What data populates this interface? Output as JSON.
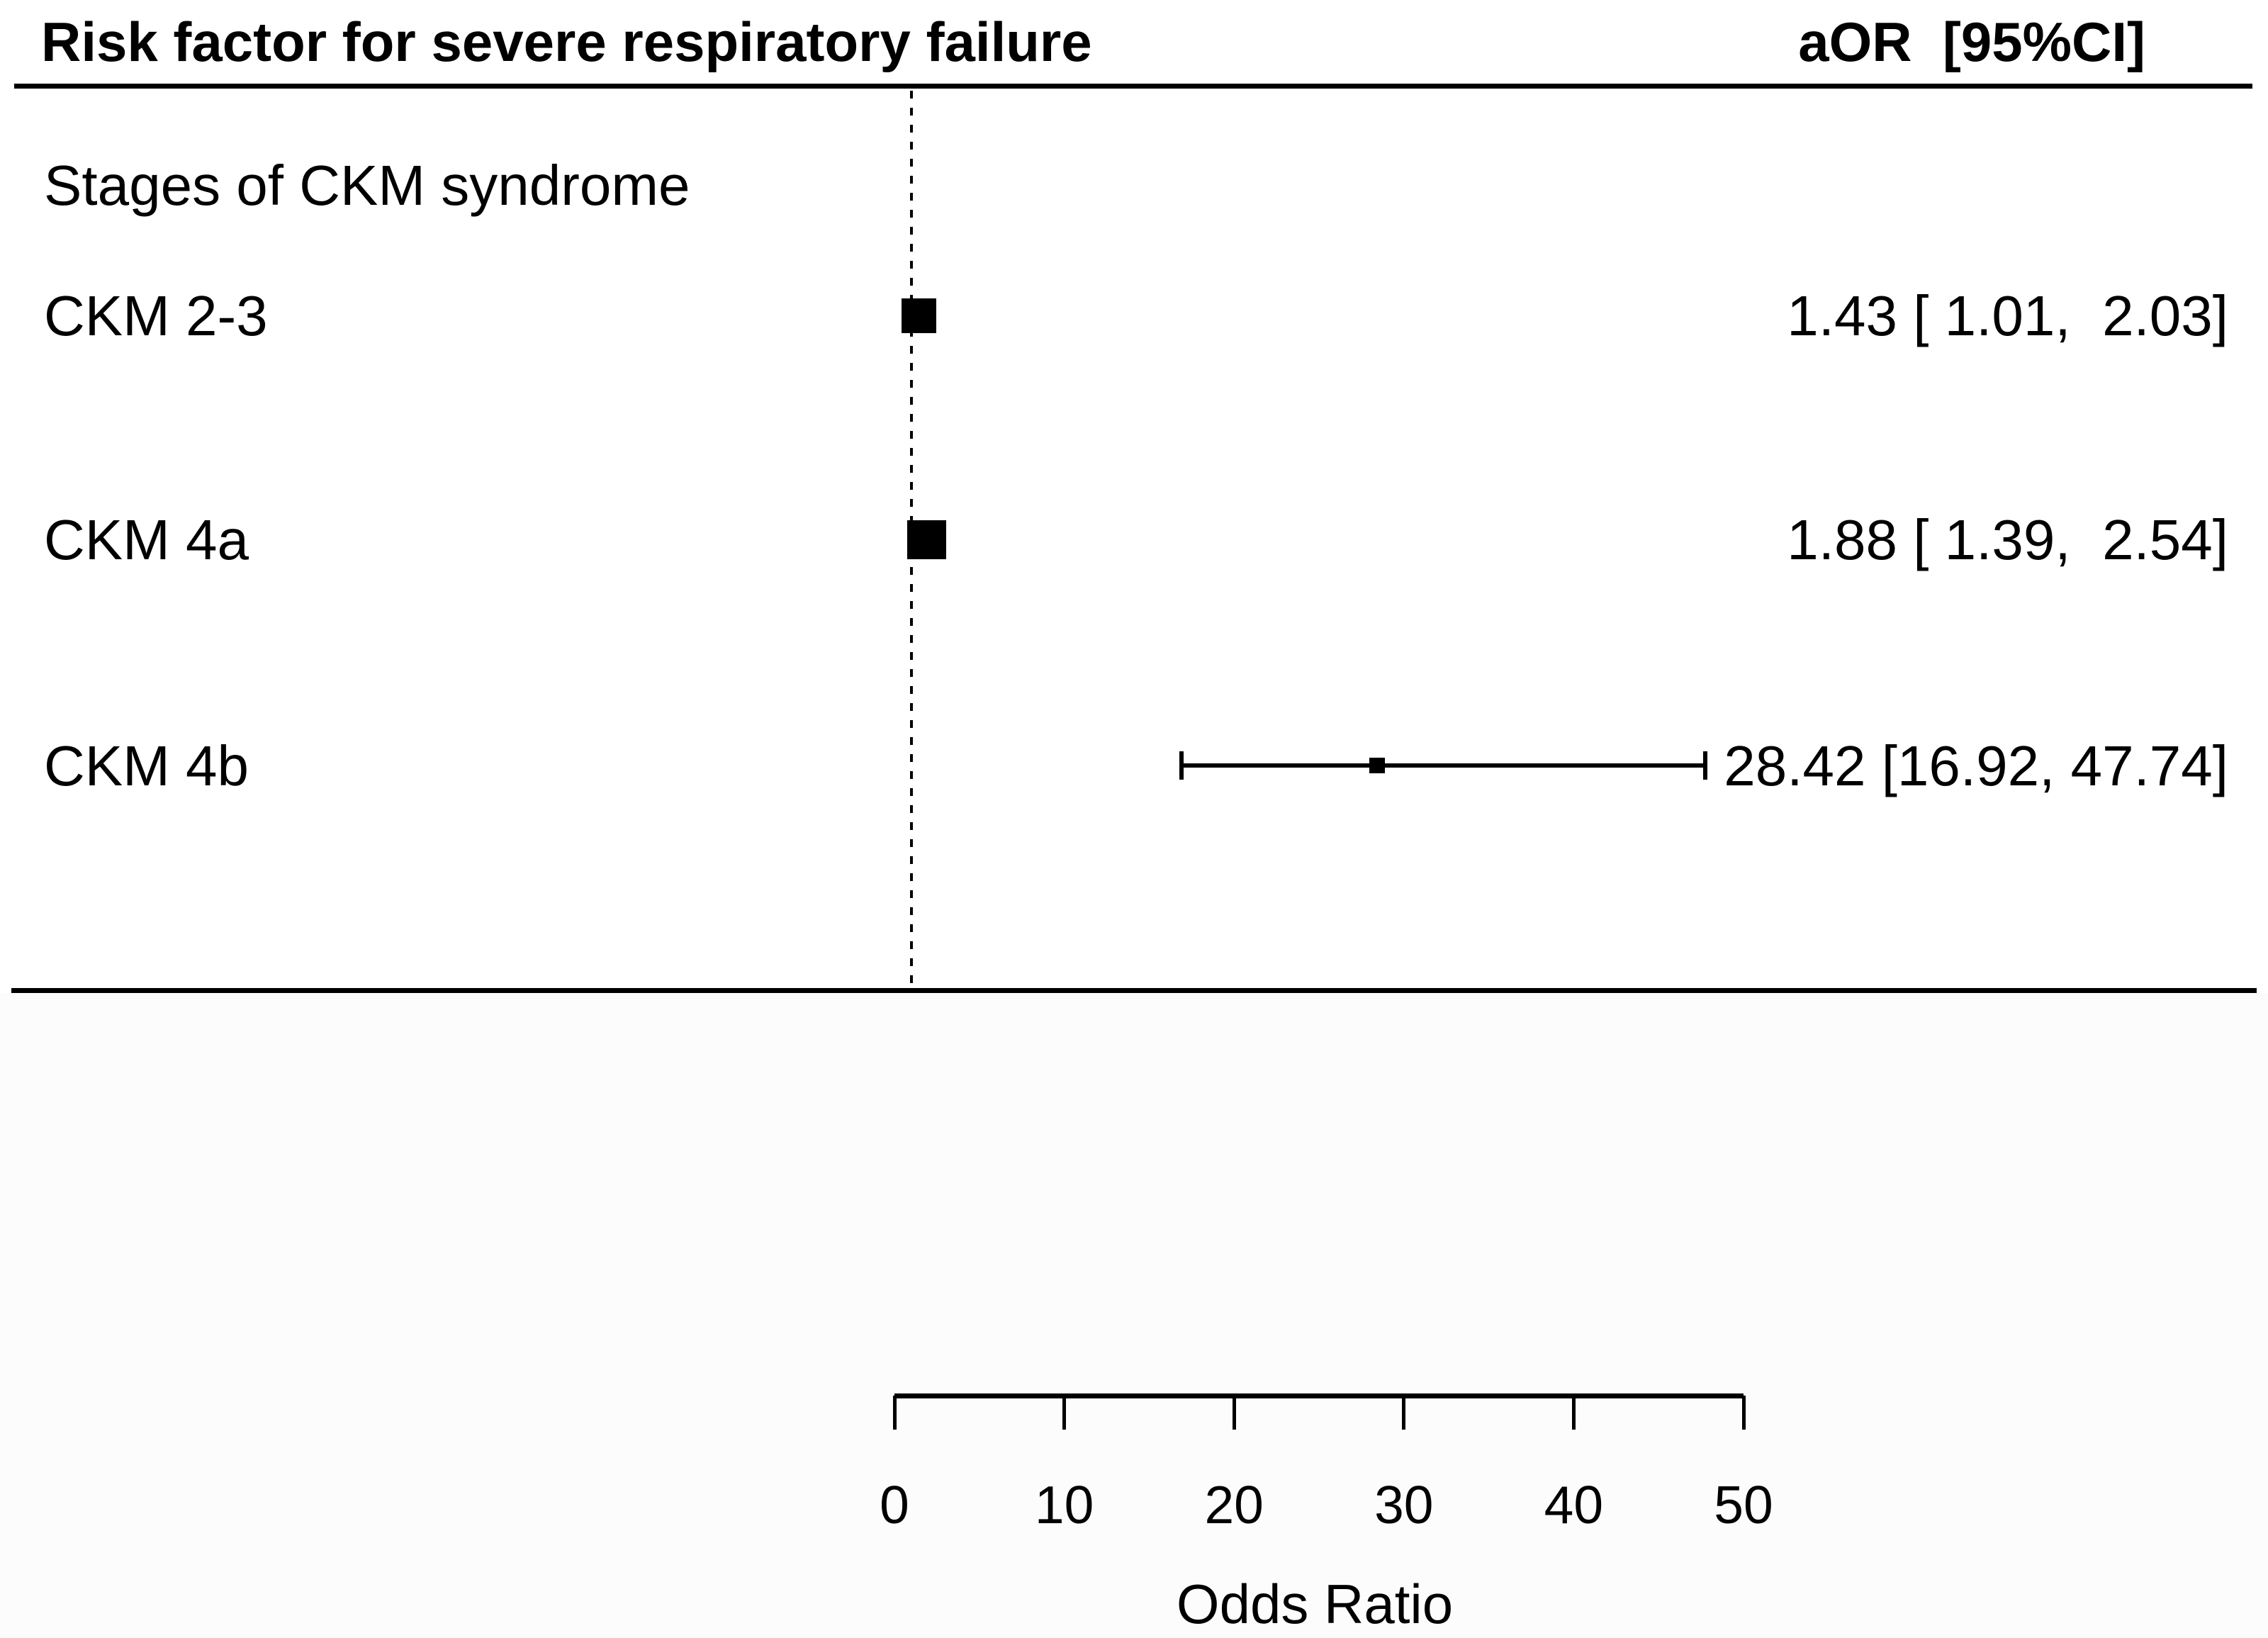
{
  "header": {
    "title": "Risk factor for severe respiratory failure",
    "column_label": "aOR  [95%CI]"
  },
  "section_label": "Stages of CKM syndrome",
  "axis": {
    "label": "Odds Ratio",
    "tick_labels": [
      "0",
      "10",
      "20",
      "30",
      "40",
      "50"
    ]
  },
  "colors": {
    "ink": "#000000",
    "background": "#ffffff",
    "lower_panel": "#fcfcfc"
  },
  "chart_data": {
    "type": "forest",
    "title": "Risk factor for severe respiratory failure",
    "value_column_header": "aOR  [95%CI]",
    "group_label": "Stages of CKM syndrome",
    "xlabel": "Odds Ratio",
    "xlim": [
      0,
      50
    ],
    "x_ticks": [
      0,
      10,
      20,
      30,
      40,
      50
    ],
    "x_tick_labels": [
      "0",
      "10",
      "20",
      "30",
      "40",
      "50"
    ],
    "reference_line_x": 1,
    "rows": [
      {
        "label": "CKM 2-3",
        "aor": 1.43,
        "ci_low": 1.01,
        "ci_high": 2.03,
        "display": "1.43 [ 1.01,  2.03]"
      },
      {
        "label": "CKM 4a",
        "aor": 1.88,
        "ci_low": 1.39,
        "ci_high": 2.54,
        "display": "1.88 [ 1.39,  2.54]"
      },
      {
        "label": "CKM 4b",
        "aor": 28.42,
        "ci_low": 16.92,
        "ci_high": 47.74,
        "display": "28.42 [16.92, 47.74]"
      }
    ]
  }
}
